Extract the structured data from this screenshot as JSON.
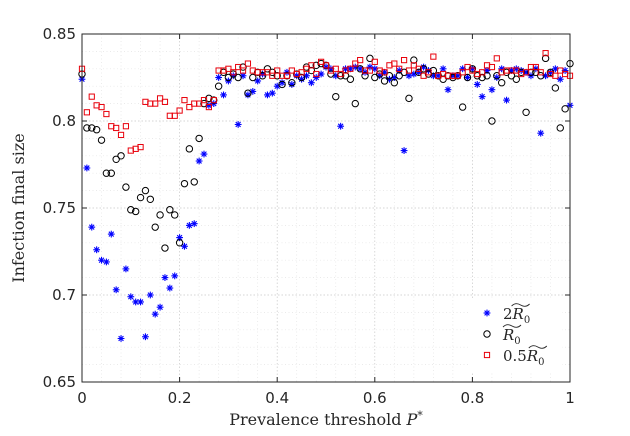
{
  "chart_data": {
    "type": "scatter",
    "xlabel": "Prevalence threshold P*",
    "ylabel": "Infection final size",
    "xlim": [
      0,
      1
    ],
    "ylim": [
      0.65,
      0.85
    ],
    "xticks": [
      "0",
      "0.2",
      "0.4",
      "0.6",
      "0.8",
      "1"
    ],
    "yticks": [
      "0.65",
      "0.7",
      "0.75",
      "0.8",
      "0.85"
    ],
    "grid": "on (dotted, with minor grid)",
    "legend_placement": "bottom-right",
    "x": [
      0.0,
      0.01,
      0.02,
      0.03,
      0.04,
      0.05,
      0.06,
      0.07,
      0.08,
      0.09,
      0.1,
      0.11,
      0.12,
      0.13,
      0.14,
      0.15,
      0.16,
      0.17,
      0.18,
      0.19,
      0.2,
      0.21,
      0.22,
      0.23,
      0.24,
      0.25,
      0.26,
      0.27,
      0.28,
      0.29,
      0.3,
      0.31,
      0.32,
      0.33,
      0.34,
      0.35,
      0.36,
      0.37,
      0.38,
      0.39,
      0.4,
      0.41,
      0.42,
      0.43,
      0.44,
      0.45,
      0.46,
      0.47,
      0.48,
      0.49,
      0.5,
      0.51,
      0.52,
      0.53,
      0.54,
      0.55,
      0.56,
      0.57,
      0.58,
      0.59,
      0.6,
      0.61,
      0.62,
      0.63,
      0.64,
      0.65,
      0.66,
      0.67,
      0.68,
      0.69,
      0.7,
      0.71,
      0.72,
      0.73,
      0.74,
      0.75,
      0.76,
      0.77,
      0.78,
      0.79,
      0.8,
      0.81,
      0.82,
      0.83,
      0.84,
      0.85,
      0.86,
      0.87,
      0.88,
      0.89,
      0.9,
      0.91,
      0.92,
      0.93,
      0.94,
      0.95,
      0.96,
      0.97,
      0.98,
      0.99,
      1.0
    ],
    "series": [
      {
        "name": "2R̃₀",
        "marker": "asterisk",
        "color": "#0000ff",
        "values": [
          0.824,
          0.773,
          0.739,
          0.726,
          0.72,
          0.719,
          0.735,
          0.703,
          0.675,
          0.715,
          0.699,
          0.696,
          0.696,
          0.676,
          0.7,
          0.689,
          0.693,
          0.71,
          0.704,
          0.711,
          0.733,
          0.728,
          0.74,
          0.741,
          0.777,
          0.781,
          0.809,
          0.81,
          0.825,
          0.815,
          0.823,
          0.826,
          0.798,
          0.826,
          0.815,
          0.817,
          0.823,
          0.827,
          0.815,
          0.816,
          0.82,
          0.822,
          0.828,
          0.821,
          0.826,
          0.824,
          0.826,
          0.822,
          0.825,
          0.827,
          0.831,
          0.83,
          0.826,
          0.797,
          0.83,
          0.83,
          0.831,
          0.83,
          0.828,
          0.831,
          0.83,
          0.826,
          0.828,
          0.824,
          0.825,
          0.829,
          0.783,
          0.826,
          0.827,
          0.828,
          0.831,
          0.829,
          0.826,
          0.826,
          0.83,
          0.818,
          0.826,
          0.826,
          0.83,
          0.825,
          0.83,
          0.821,
          0.814,
          0.829,
          0.818,
          0.825,
          0.83,
          0.812,
          0.829,
          0.83,
          0.829,
          0.828,
          0.826,
          0.83,
          0.793,
          0.826,
          0.828,
          0.83,
          0.824,
          0.829,
          0.809
        ]
      },
      {
        "name": "R̃₀",
        "marker": "circle",
        "color": "#000000",
        "values": [
          0.827,
          0.796,
          0.796,
          0.795,
          0.789,
          0.77,
          0.77,
          0.778,
          0.78,
          0.762,
          0.749,
          0.748,
          0.756,
          0.76,
          0.755,
          0.739,
          0.746,
          0.727,
          0.749,
          0.746,
          0.73,
          0.764,
          0.784,
          0.765,
          0.79,
          0.81,
          0.813,
          0.812,
          0.82,
          0.828,
          0.825,
          0.827,
          0.825,
          0.831,
          0.816,
          0.825,
          0.828,
          0.826,
          0.83,
          0.828,
          0.826,
          0.821,
          0.826,
          0.822,
          0.827,
          0.825,
          0.831,
          0.829,
          0.832,
          0.833,
          0.832,
          0.827,
          0.814,
          0.826,
          0.826,
          0.824,
          0.81,
          0.83,
          0.826,
          0.836,
          0.825,
          0.827,
          0.823,
          0.826,
          0.822,
          0.826,
          0.828,
          0.813,
          0.835,
          0.828,
          0.83,
          0.827,
          0.829,
          0.826,
          0.824,
          0.826,
          0.825,
          0.826,
          0.808,
          0.825,
          0.83,
          0.826,
          0.825,
          0.826,
          0.8,
          0.826,
          0.822,
          0.828,
          0.826,
          0.824,
          0.828,
          0.805,
          0.828,
          0.828,
          0.826,
          0.836,
          0.828,
          0.819,
          0.796,
          0.807,
          0.833
        ]
      },
      {
        "name": "0.5R̃₀",
        "marker": "square",
        "color": "#e8000b",
        "values": [
          0.83,
          0.805,
          0.814,
          0.809,
          0.808,
          0.804,
          0.797,
          0.796,
          0.792,
          0.797,
          0.783,
          0.784,
          0.785,
          0.811,
          0.81,
          0.81,
          0.813,
          0.811,
          0.803,
          0.803,
          0.806,
          0.812,
          0.808,
          0.81,
          0.81,
          0.812,
          0.808,
          0.812,
          0.829,
          0.829,
          0.83,
          0.828,
          0.831,
          0.829,
          0.833,
          0.829,
          0.828,
          0.828,
          0.828,
          0.826,
          0.829,
          0.826,
          0.826,
          0.829,
          0.827,
          0.828,
          0.83,
          0.832,
          0.827,
          0.834,
          0.832,
          0.829,
          0.83,
          0.827,
          0.829,
          0.83,
          0.833,
          0.835,
          0.829,
          0.829,
          0.834,
          0.829,
          0.828,
          0.832,
          0.833,
          0.83,
          0.835,
          0.829,
          0.832,
          0.83,
          0.826,
          0.828,
          0.837,
          0.826,
          0.827,
          0.826,
          0.826,
          0.826,
          0.828,
          0.831,
          0.829,
          0.827,
          0.828,
          0.832,
          0.831,
          0.836,
          0.828,
          0.829,
          0.829,
          0.829,
          0.827,
          0.828,
          0.831,
          0.831,
          0.828,
          0.839,
          0.827,
          0.826,
          0.829,
          0.827,
          0.826
        ]
      }
    ]
  }
}
